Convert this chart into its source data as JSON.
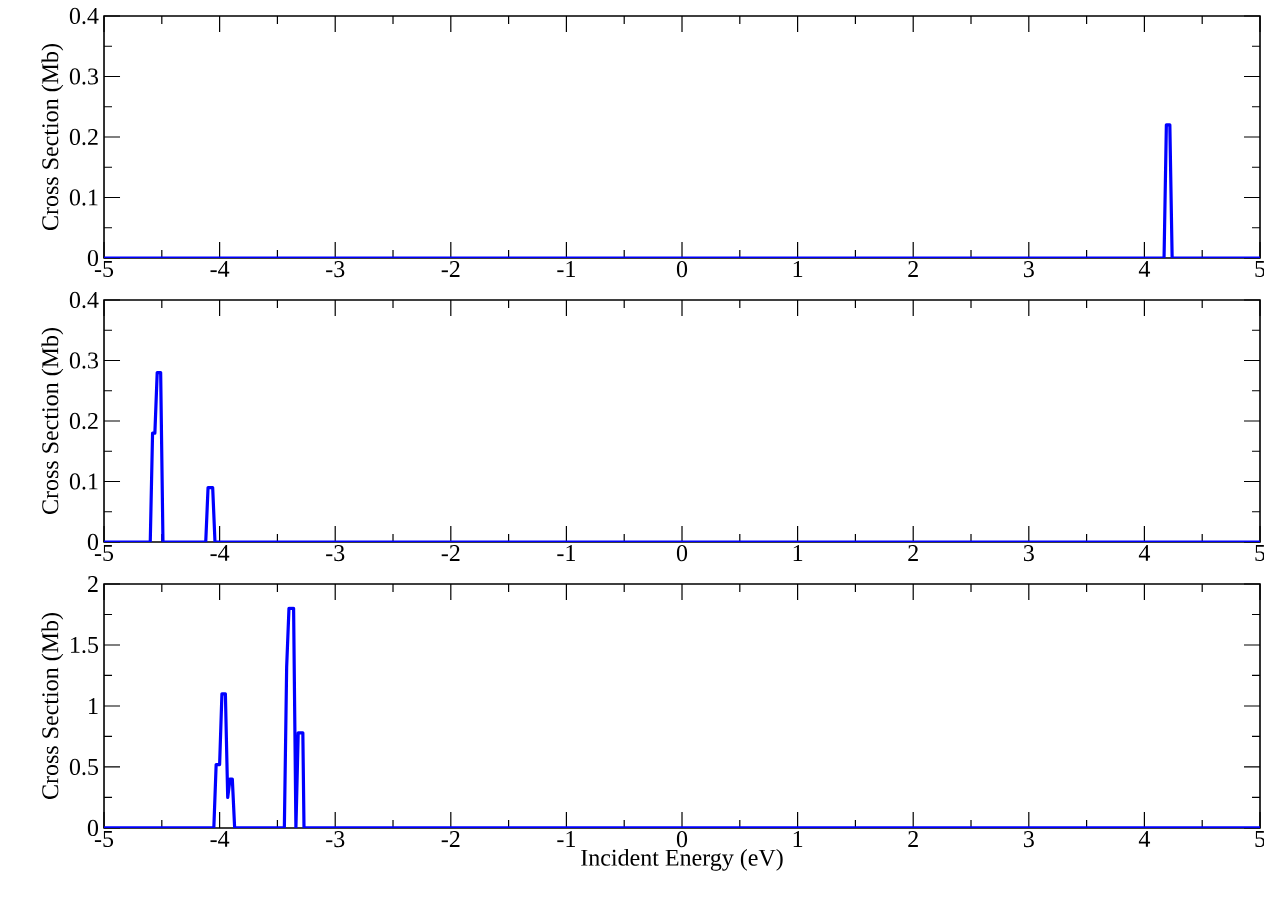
{
  "chart_data": [
    {
      "type": "line",
      "ylabel": "Cross Section (Mb)",
      "xlim": [
        -5,
        5
      ],
      "xticks": [
        -5,
        -4,
        -3,
        -2,
        -1,
        0,
        1,
        2,
        3,
        4,
        5
      ],
      "ylim": [
        0,
        0.4
      ],
      "yticks": [
        0,
        0.1,
        0.2,
        0.3,
        0.4
      ],
      "grid": false,
      "series": [
        {
          "color": "#0000ff",
          "x": [
            -5,
            4.17,
            4.19,
            4.22,
            4.24,
            5
          ],
          "values": [
            0,
            0,
            0.22,
            0.22,
            0,
            0
          ]
        }
      ]
    },
    {
      "type": "line",
      "ylabel": "Cross Section (Mb)",
      "xlim": [
        -5,
        5
      ],
      "xticks": [
        -5,
        -4,
        -3,
        -2,
        -1,
        0,
        1,
        2,
        3,
        4,
        5
      ],
      "ylim": [
        0,
        0.4
      ],
      "yticks": [
        0,
        0.1,
        0.2,
        0.3,
        0.4
      ],
      "grid": false,
      "series": [
        {
          "color": "#0000ff",
          "x": [
            -5,
            -4.6,
            -4.58,
            -4.56,
            -4.54,
            -4.51,
            -4.49,
            -4.12,
            -4.1,
            -4.06,
            -4.04,
            5
          ],
          "values": [
            0,
            0,
            0.18,
            0.18,
            0.28,
            0.28,
            0,
            0,
            0.09,
            0.09,
            0,
            0
          ]
        }
      ]
    },
    {
      "type": "line",
      "xlabel": "Incident Energy (eV)",
      "ylabel": "Cross Section (Mb)",
      "xlim": [
        -5,
        5
      ],
      "xticks": [
        -5,
        -4,
        -3,
        -2,
        -1,
        0,
        1,
        2,
        3,
        4,
        5
      ],
      "ylim": [
        0,
        2
      ],
      "yticks": [
        0,
        0.5,
        1,
        1.5,
        2
      ],
      "grid": false,
      "series": [
        {
          "color": "#0000ff",
          "x": [
            -5,
            -4.05,
            -4.03,
            -4.0,
            -3.98,
            -3.95,
            -3.93,
            -3.91,
            -3.89,
            -3.87,
            -3.44,
            -3.42,
            -3.4,
            -3.36,
            -3.34,
            -3.32,
            -3.28,
            -3.27,
            5
          ],
          "values": [
            0,
            0,
            0.52,
            0.52,
            1.1,
            1.1,
            0.25,
            0.4,
            0.4,
            0,
            0,
            1.32,
            1.8,
            1.8,
            0,
            0.78,
            0.78,
            0,
            0
          ]
        }
      ]
    }
  ]
}
